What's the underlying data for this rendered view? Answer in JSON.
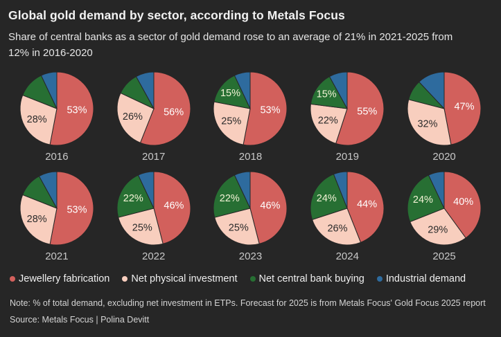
{
  "header": {
    "title": "Global gold demand by sector, according to Metals Focus",
    "subtitle": "Share of central banks as a sector of gold demand rose to an average of 21% in 2021-2025 from 12% in 2016-2020"
  },
  "colors": {
    "background": "#262626",
    "jewellery": "#d2605c",
    "physical_investment": "#f8cebe",
    "central_bank": "#276f33",
    "industrial": "#2e6b9e"
  },
  "legend": {
    "items": [
      {
        "label": "Jewellery fabrication",
        "color": "#d2605c"
      },
      {
        "label": "Net physical investment",
        "color": "#f8cebe"
      },
      {
        "label": "Net central bank buying",
        "color": "#276f33"
      },
      {
        "label": "Industrial demand",
        "color": "#2e6b9e"
      }
    ]
  },
  "footer": {
    "note": "Note: % of total demand, excluding net investment in ETPs. Forecast for 2025 is from Metals Focus' Gold Focus 2025 report",
    "source": "Source: Metals Focus | Polina Devitt"
  },
  "chart_data": {
    "type": "pie",
    "unit": "% of total gold demand",
    "layout": "2 rows x 5 pies; years 2016-2020 top row, 2021-2025 bottom row; slices clockwise from 12 o'clock",
    "sectors": [
      {
        "name": "Jewellery fabrication",
        "color": "#d2605c",
        "label_color": "#ffffff"
      },
      {
        "name": "Net physical investment",
        "color": "#f8cebe",
        "label_color": "#2a2a2a"
      },
      {
        "name": "Net central bank buying",
        "color": "#276f33",
        "label_color": "#f3f3d6"
      },
      {
        "name": "Industrial demand",
        "color": "#2e6b9e",
        "label_color": "#ffffff"
      }
    ],
    "pies": [
      {
        "year": "2016",
        "values": [
          53,
          28,
          12,
          7
        ],
        "labels": [
          "53%",
          "28%",
          "",
          ""
        ]
      },
      {
        "year": "2017",
        "values": [
          56,
          26,
          10,
          8
        ],
        "labels": [
          "56%",
          "26%",
          "",
          ""
        ]
      },
      {
        "year": "2018",
        "values": [
          53,
          25,
          15,
          7
        ],
        "labels": [
          "53%",
          "25%",
          "15%",
          ""
        ]
      },
      {
        "year": "2019",
        "values": [
          55,
          22,
          15,
          8
        ],
        "labels": [
          "55%",
          "22%",
          "15%",
          ""
        ]
      },
      {
        "year": "2020",
        "values": [
          47,
          32,
          9,
          12
        ],
        "labels": [
          "47%",
          "32%",
          "",
          ""
        ]
      },
      {
        "year": "2021",
        "values": [
          53,
          28,
          11,
          8
        ],
        "labels": [
          "53%",
          "28%",
          "",
          ""
        ]
      },
      {
        "year": "2022",
        "values": [
          46,
          25,
          22,
          7
        ],
        "labels": [
          "46%",
          "25%",
          "22%",
          ""
        ]
      },
      {
        "year": "2023",
        "values": [
          46,
          25,
          22,
          7
        ],
        "labels": [
          "46%",
          "25%",
          "22%",
          ""
        ]
      },
      {
        "year": "2024",
        "values": [
          44,
          26,
          24,
          6
        ],
        "labels": [
          "44%",
          "26%",
          "24%",
          ""
        ]
      },
      {
        "year": "2025",
        "values": [
          40,
          29,
          24,
          7
        ],
        "labels": [
          "40%",
          "29%",
          "24%",
          ""
        ]
      }
    ]
  }
}
